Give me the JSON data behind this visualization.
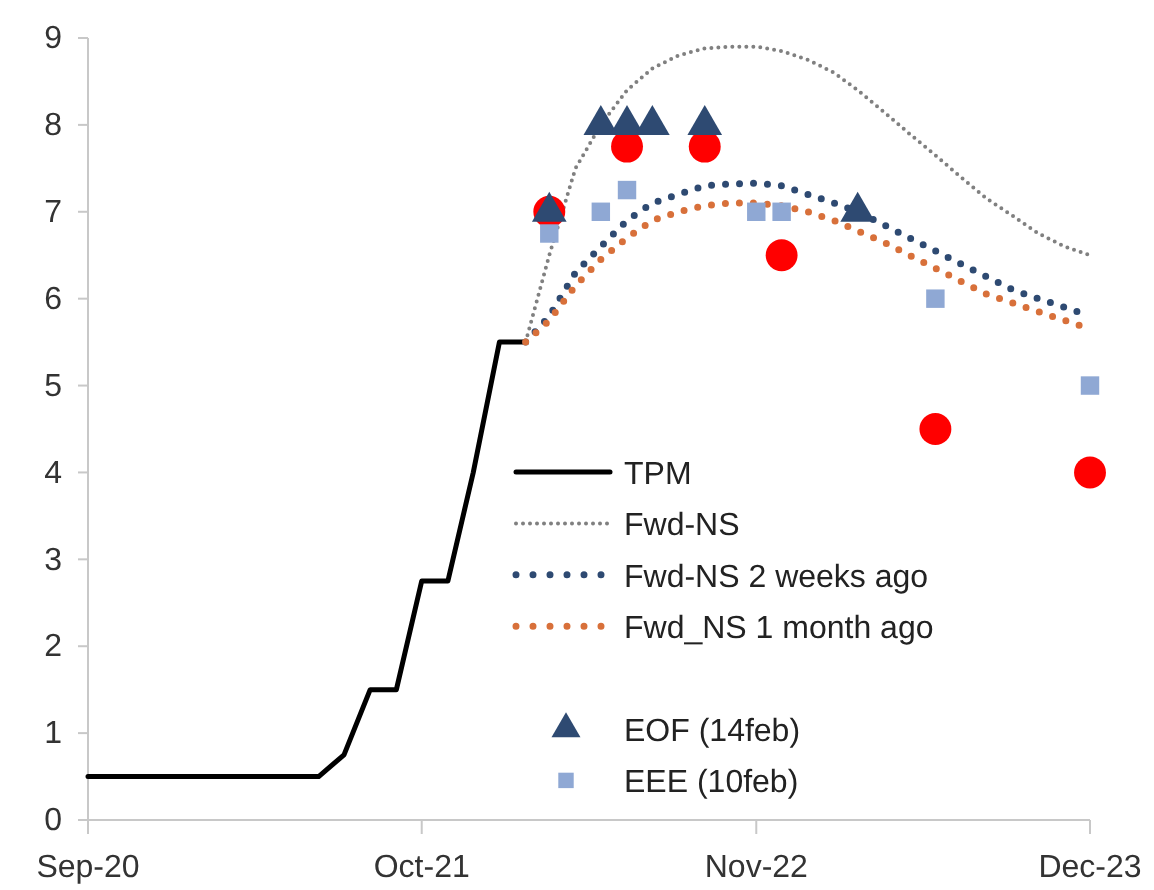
{
  "chart_data": {
    "type": "line",
    "xlim": [
      "2020-09",
      "2023-12"
    ],
    "xticks": [
      {
        "value": "2020-09",
        "label": "Sep-20"
      },
      {
        "value": "2021-10",
        "label": "Oct-21"
      },
      {
        "value": "2022-11",
        "label": "Nov-22"
      },
      {
        "value": "2023-12",
        "label": "Dec-23"
      }
    ],
    "ylim": [
      0,
      9
    ],
    "yticks": [
      0,
      1,
      2,
      3,
      4,
      5,
      6,
      7,
      8,
      9
    ],
    "grid": false,
    "legend": "bottom right",
    "series": [
      {
        "name": "TPM",
        "color": "#000000",
        "line_style": "solid",
        "marker": "none",
        "x": [
          "2020-09",
          "2021-06",
          "2021-07",
          "2021-08",
          "2021-09",
          "2021-10",
          "2021-11",
          "2021-12",
          "2022-01",
          "2022-02"
        ],
        "values": [
          0.5,
          0.5,
          0.75,
          1.5,
          1.5,
          2.75,
          2.75,
          4.0,
          5.5,
          5.5
        ]
      },
      {
        "name": "Fwd-NS",
        "color": "#808080",
        "line_style": "dotted",
        "marker": "none",
        "x": [
          "2022-02",
          "2022-03",
          "2022-04",
          "2022-05",
          "2022-06",
          "2022-07",
          "2022-08",
          "2022-09",
          "2022-10",
          "2022-11",
          "2022-12",
          "2023-01",
          "2023-02",
          "2023-03",
          "2023-04",
          "2023-05",
          "2023-06",
          "2023-07",
          "2023-08",
          "2023-09",
          "2023-10",
          "2023-11",
          "2023-12"
        ],
        "values": [
          5.5,
          6.5,
          7.5,
          8.0,
          8.4,
          8.65,
          8.8,
          8.88,
          8.9,
          8.9,
          8.85,
          8.75,
          8.6,
          8.4,
          8.15,
          7.9,
          7.65,
          7.4,
          7.15,
          6.95,
          6.75,
          6.6,
          6.5
        ]
      },
      {
        "name": "Fwd-NS  2 weeks ago",
        "color": "#2e4a72",
        "line_style": "dotted",
        "marker": "none",
        "x": [
          "2022-02",
          "2022-03",
          "2022-04",
          "2022-05",
          "2022-06",
          "2022-07",
          "2022-08",
          "2022-09",
          "2022-10",
          "2022-11",
          "2022-12",
          "2023-01",
          "2023-02",
          "2023-03",
          "2023-04",
          "2023-05",
          "2023-06",
          "2023-07",
          "2023-08",
          "2023-09",
          "2023-10",
          "2023-11",
          "2023-12"
        ],
        "values": [
          5.5,
          5.8,
          6.3,
          6.6,
          6.9,
          7.1,
          7.2,
          7.3,
          7.32,
          7.33,
          7.3,
          7.2,
          7.1,
          7.0,
          6.85,
          6.7,
          6.55,
          6.4,
          6.25,
          6.1,
          6.0,
          5.9,
          5.8
        ]
      },
      {
        "name": "Fwd_NS  1 month ago",
        "color": "#d8703a",
        "line_style": "dotted",
        "marker": "none",
        "x": [
          "2022-02",
          "2022-03",
          "2022-04",
          "2022-05",
          "2022-06",
          "2022-07",
          "2022-08",
          "2022-09",
          "2022-10",
          "2022-11",
          "2022-12",
          "2023-01",
          "2023-02",
          "2023-03",
          "2023-04",
          "2023-05",
          "2023-06",
          "2023-07",
          "2023-08",
          "2023-09",
          "2023-10",
          "2023-11",
          "2023-12"
        ],
        "values": [
          5.5,
          5.75,
          6.15,
          6.45,
          6.7,
          6.9,
          7.0,
          7.07,
          7.1,
          7.1,
          7.07,
          7.0,
          6.9,
          6.78,
          6.65,
          6.5,
          6.35,
          6.2,
          6.05,
          5.95,
          5.85,
          5.75,
          5.65
        ]
      },
      {
        "type": "scatter",
        "color": "#ff0000",
        "marker": "circle",
        "x": [
          "2022-03",
          "2022-06",
          "2022-09",
          "2022-12",
          "2023-06",
          "2023-12"
        ],
        "values": [
          7.0,
          7.75,
          7.75,
          6.5,
          4.5,
          4.0
        ]
      },
      {
        "name": "EOF (14feb)",
        "type": "scatter",
        "color": "#2e4a72",
        "marker": "triangle",
        "x": [
          "2022-03",
          "2022-05",
          "2022-06",
          "2022-07",
          "2022-09",
          "2023-03"
        ],
        "values": [
          7.0,
          8.0,
          8.0,
          8.0,
          8.0,
          7.0
        ]
      },
      {
        "name": "EEE (10feb)",
        "type": "scatter",
        "color": "#8fa8d4",
        "marker": "square",
        "x": [
          "2022-03",
          "2022-05",
          "2022-06",
          "2022-11",
          "2022-12",
          "2023-06",
          "2023-12"
        ],
        "values": [
          6.75,
          7.0,
          7.25,
          7.0,
          7.0,
          6.0,
          5.0
        ]
      }
    ]
  }
}
